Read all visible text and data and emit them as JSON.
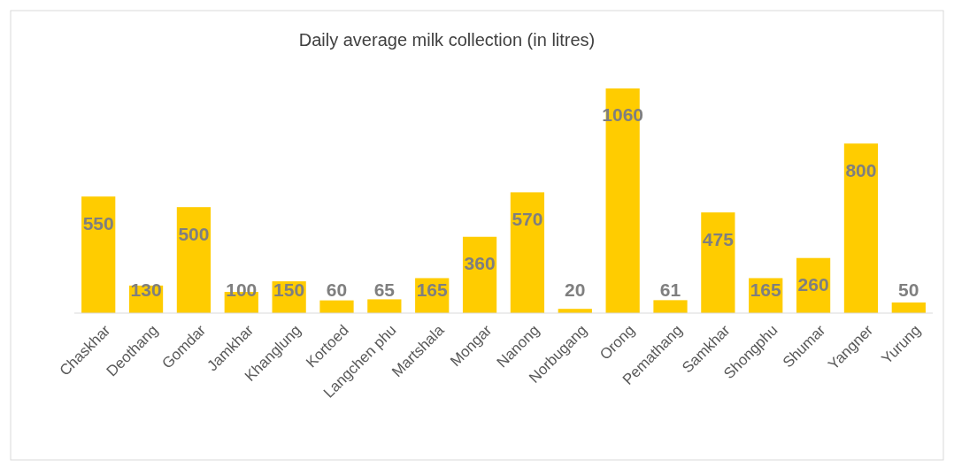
{
  "chart_data": {
    "type": "bar",
    "title": "Daily average milk collection (in litres)",
    "categories": [
      "Chaskhar",
      "Deothang",
      "Gomdar",
      "Jamkhar",
      "Khanglung",
      "Kortoed",
      "Langchen phu",
      "Martshala",
      "Mongar",
      "Nanong",
      "Norbugang",
      "Orong",
      "Pemathang",
      "Samkhar",
      "Shongphu",
      "Shumar",
      "Yangner",
      "Yurung"
    ],
    "values": [
      550,
      130,
      500,
      100,
      150,
      60,
      65,
      165,
      360,
      570,
      20,
      1060,
      61,
      475,
      165,
      260,
      800,
      50
    ],
    "color": "#ffcc00",
    "data_labels": true
  }
}
